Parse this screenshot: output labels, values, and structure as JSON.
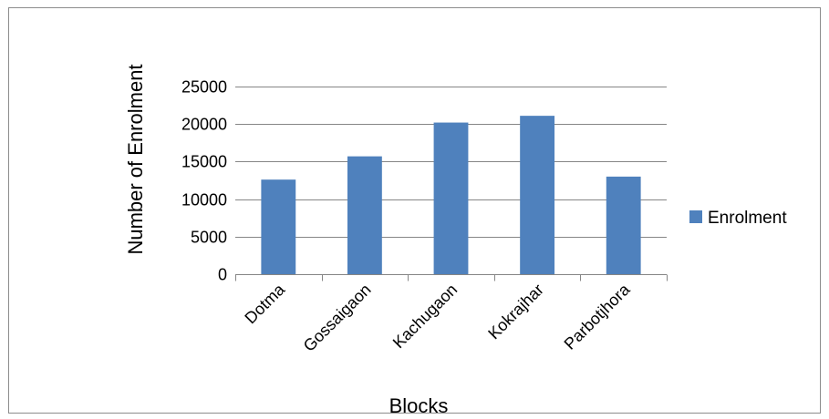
{
  "chart_data": {
    "type": "bar",
    "categories": [
      "Dotma",
      "Gossaigaon",
      "Kachugaon",
      "Kokrajhar",
      "Parbotjhora"
    ],
    "series": [
      {
        "name": "Enrolment",
        "values": [
          12600,
          15700,
          20200,
          21100,
          13000
        ],
        "color": "#4f81bd"
      }
    ],
    "title": "",
    "xlabel": "Blocks",
    "ylabel": "Number of Enrolment",
    "ylim": [
      0,
      25000
    ],
    "yticks": [
      0,
      5000,
      10000,
      15000,
      20000,
      25000
    ],
    "ytick_labels": [
      "0",
      "5000",
      "10000",
      "15000",
      "20000",
      "25000"
    ],
    "grid": true,
    "legend_position": "right"
  }
}
